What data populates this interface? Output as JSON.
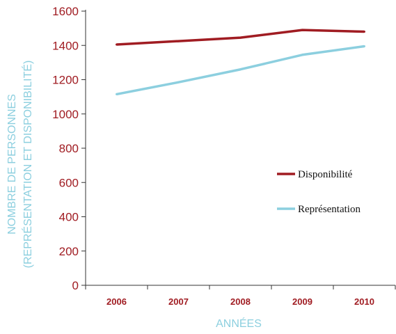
{
  "chart_data": {
    "type": "line",
    "x": [
      "2006",
      "2007",
      "2008",
      "2009",
      "2010"
    ],
    "xlabel": "ANNÉES",
    "ylabel_line1": "NOMBRE DE PERSONNES",
    "ylabel_line2": "(REPRÉSENTATION ET DISPONIBILITÉ)",
    "ylim": [
      0,
      1600
    ],
    "yticks": [
      0,
      200,
      400,
      600,
      800,
      1000,
      1200,
      1400,
      1600
    ],
    "grid": false,
    "legend_position": "center-right",
    "series": [
      {
        "name": "Disponibilité",
        "color": "#a01c22",
        "values": [
          1405,
          1425,
          1445,
          1490,
          1480
        ]
      },
      {
        "name": "Représentation",
        "color": "#8ccfdf",
        "values": [
          1115,
          1185,
          1260,
          1345,
          1395
        ]
      }
    ]
  },
  "colors": {
    "axis": "#333333",
    "tick_label": "#a01c22",
    "axis_title": "#8ccfdf"
  }
}
